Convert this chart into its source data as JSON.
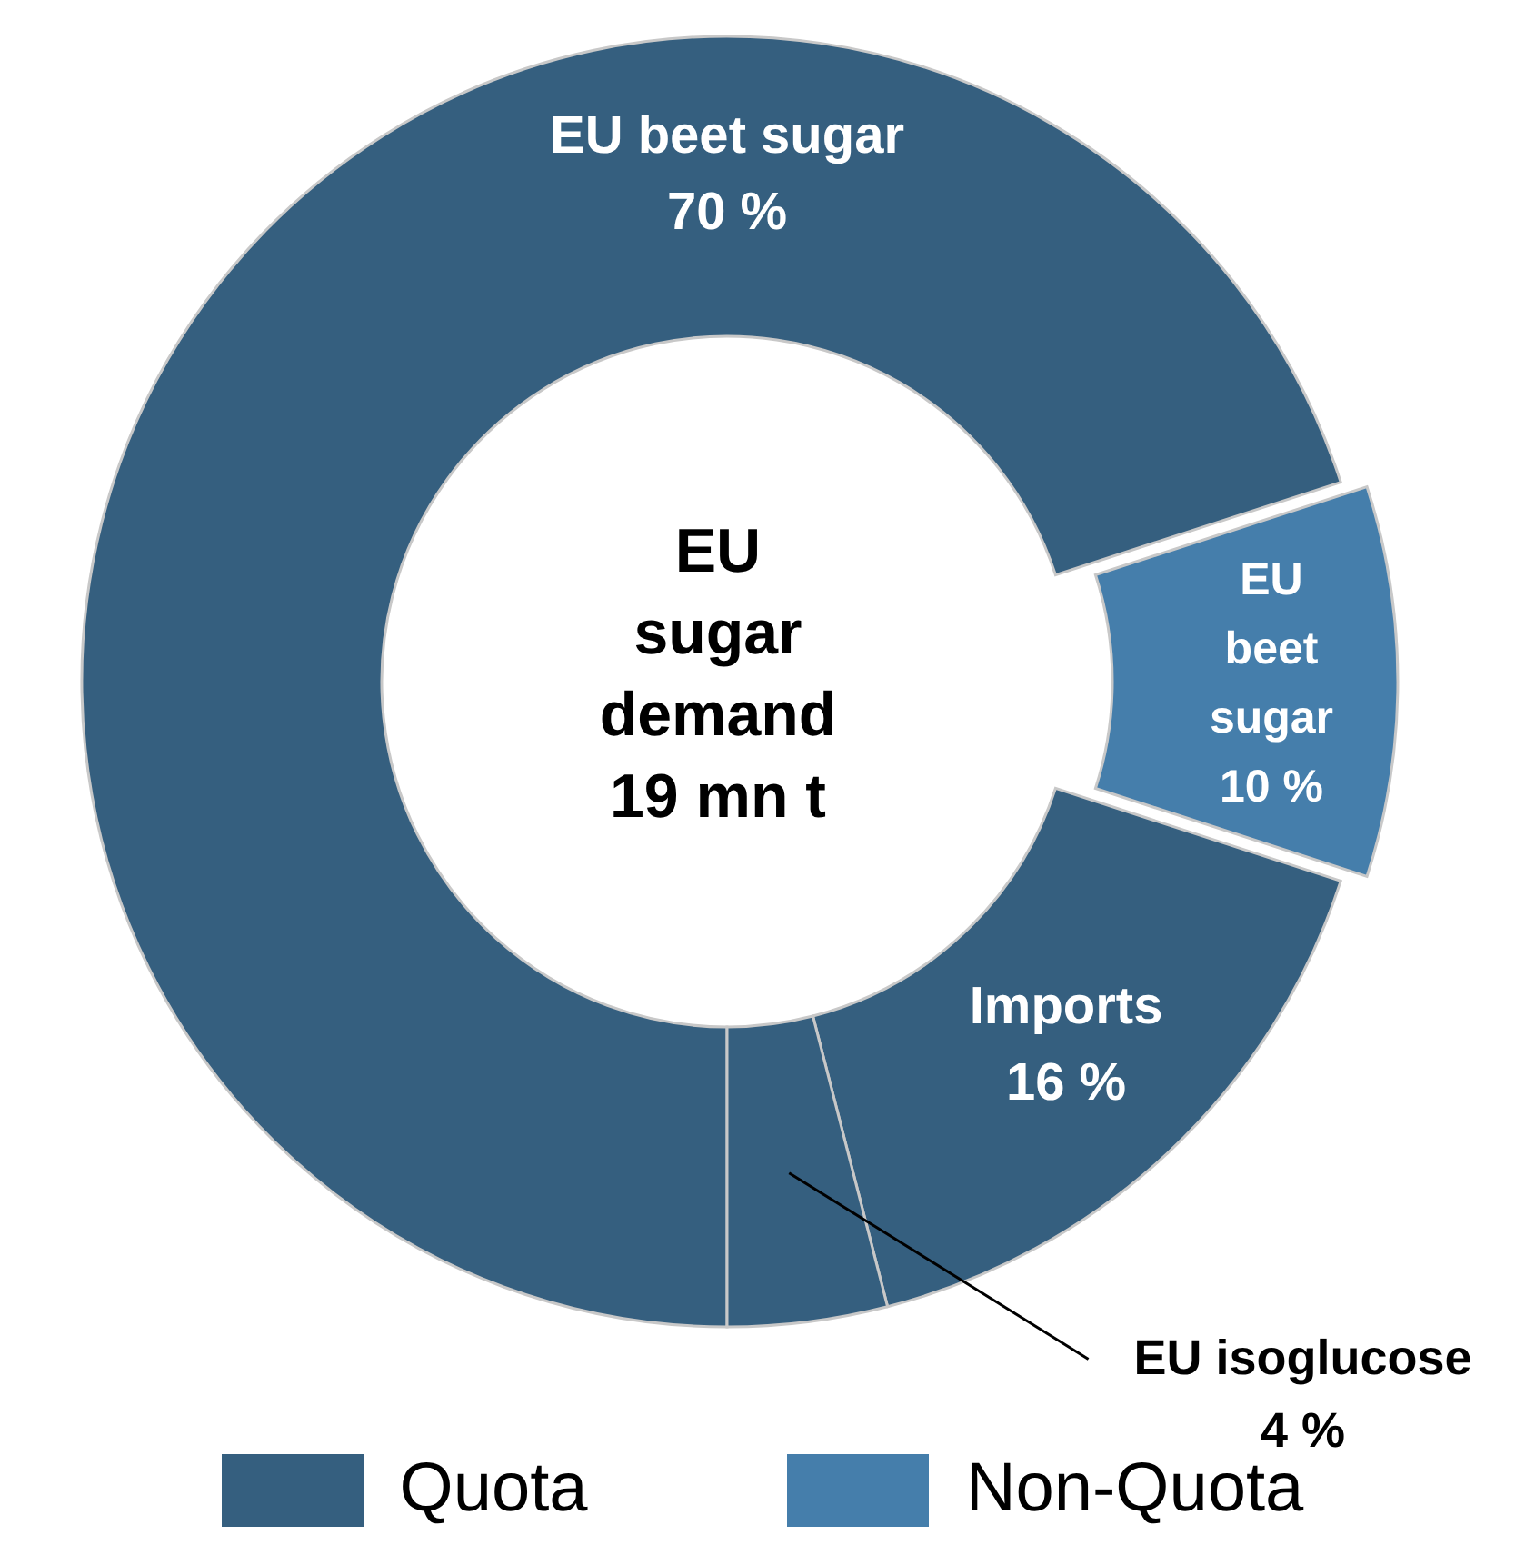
{
  "chart_data": {
    "type": "donut",
    "categories": [
      "EU beet sugar",
      "EU beet sugar",
      "Imports",
      "EU isoglucose"
    ],
    "values": [
      70,
      10,
      16,
      4
    ],
    "colors": [
      "#355f7f",
      "#457eab",
      "#355f7f",
      "#355f7f"
    ],
    "value_labels": [
      "70 %",
      "10 %",
      "16 %",
      "4 %"
    ],
    "annotations": [
      "EU sugar demand 19 mn t",
      "Quota",
      "Non-Quota"
    ]
  }
}
